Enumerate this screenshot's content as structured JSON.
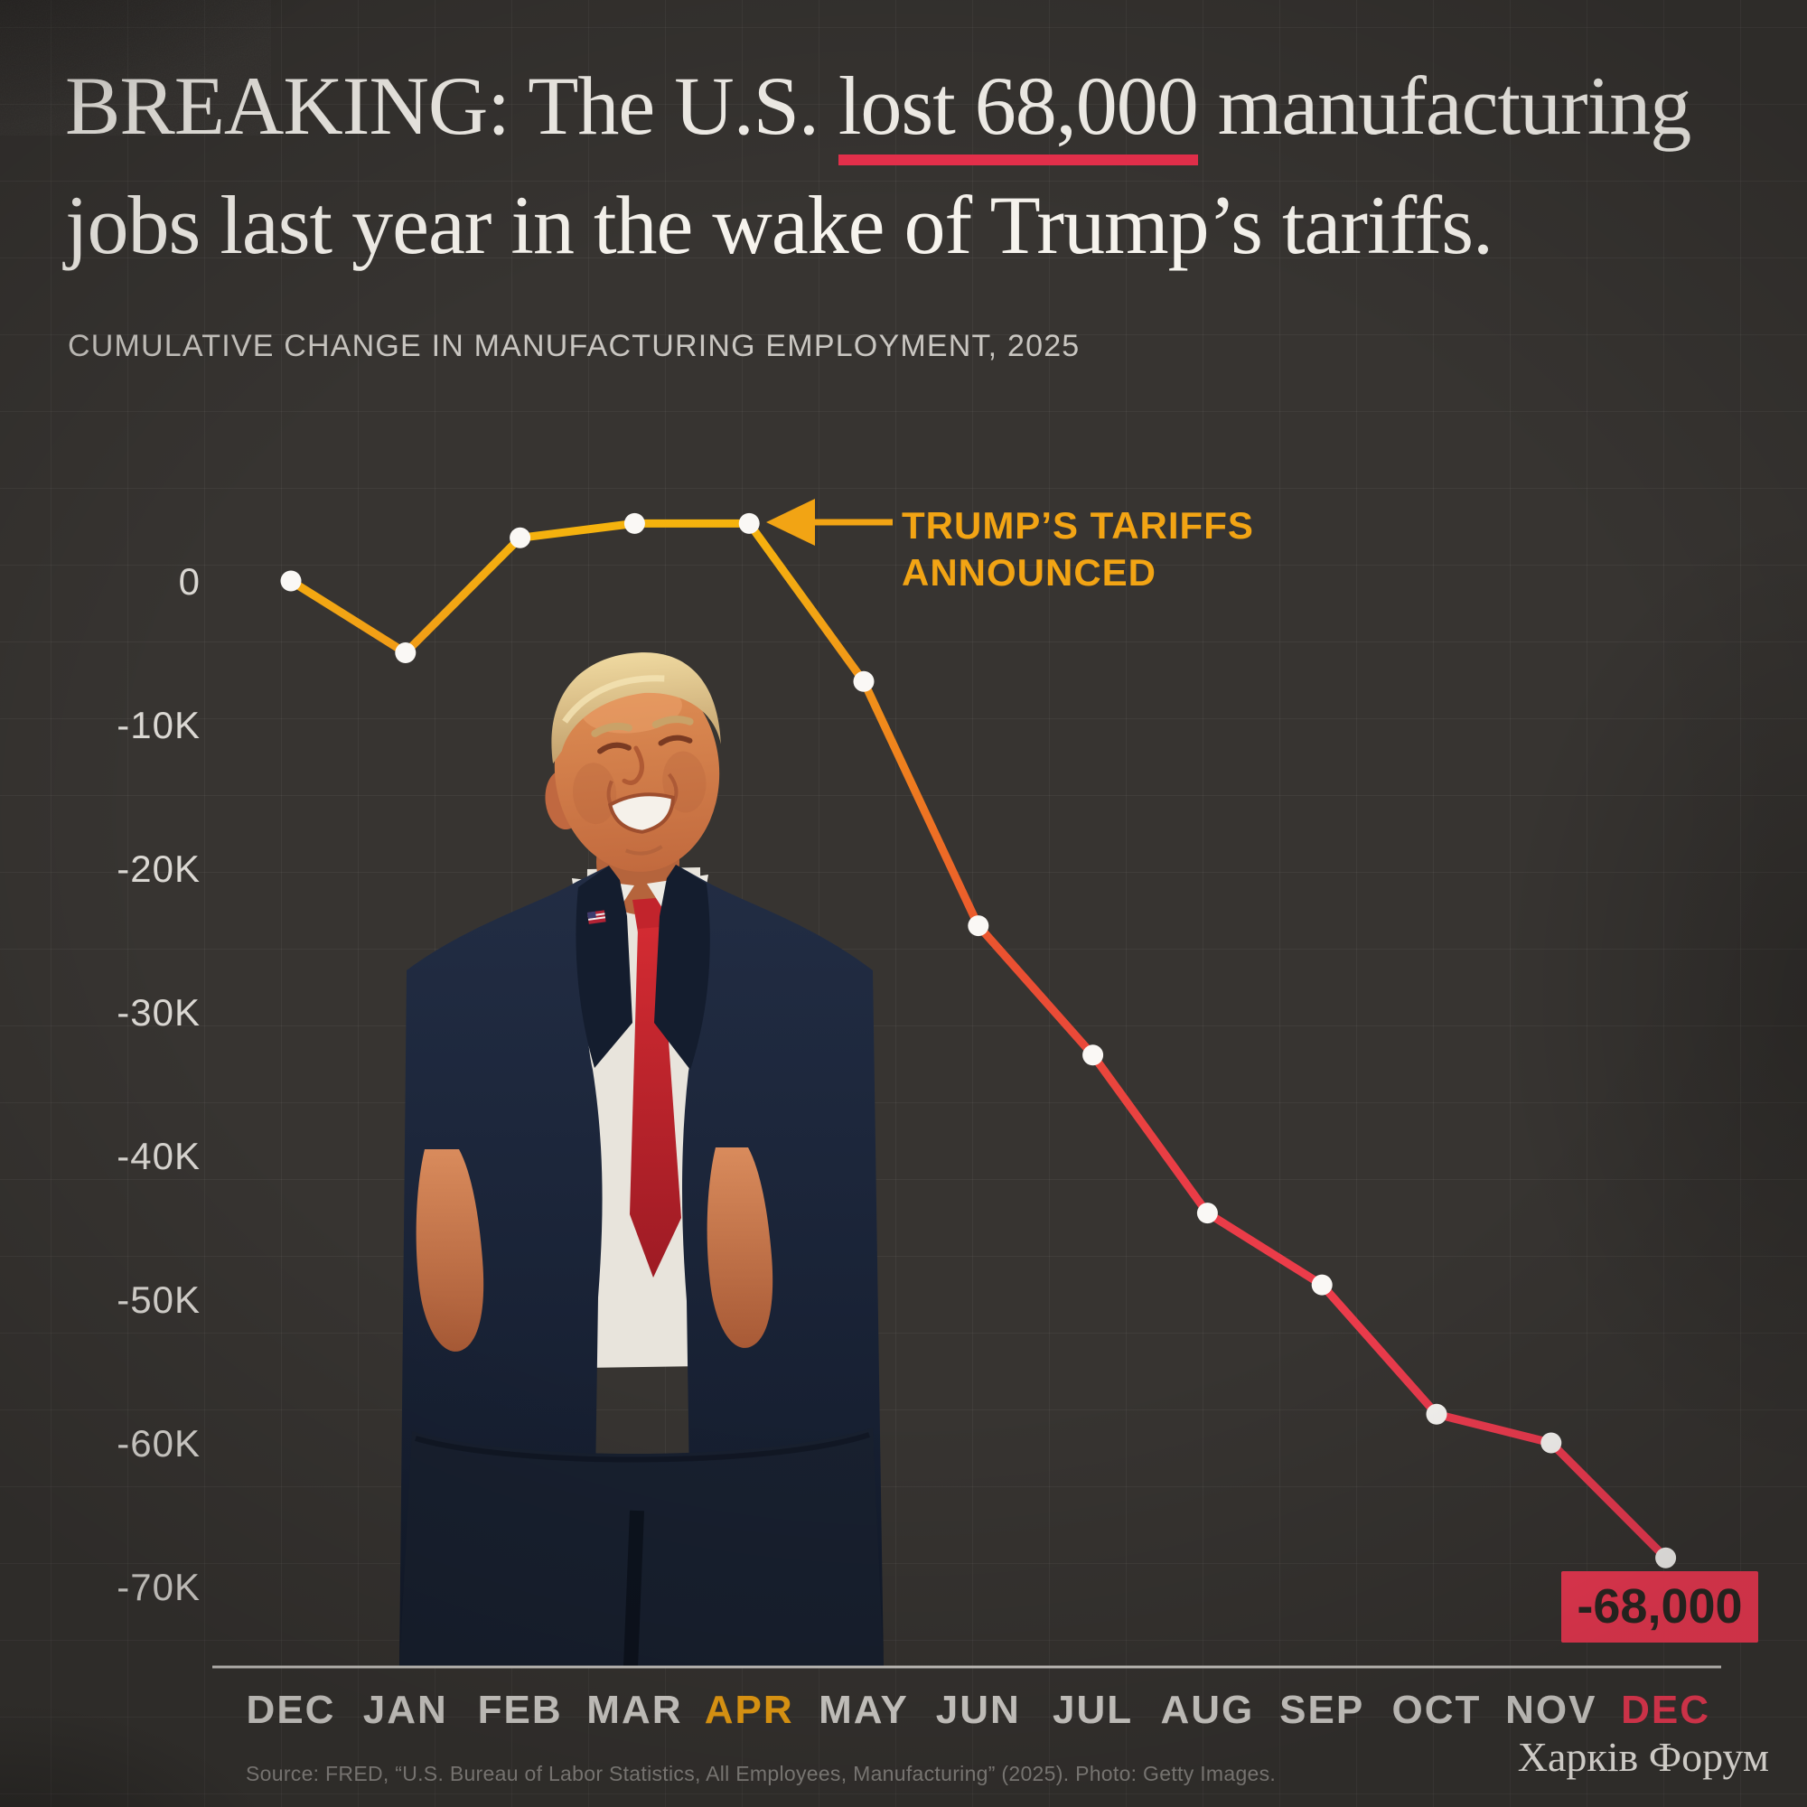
{
  "headline": {
    "prefix": "BREAKING: The U.S. ",
    "underlined": "lost 68,000",
    "suffix_line1": " manufacturing",
    "line2": "jobs last year in the wake of Trump’s tariffs."
  },
  "subtitle": "CUMULATIVE CHANGE IN MANUFACTURING EMPLOYMENT, 2025",
  "chart_data": {
    "type": "line",
    "title": "Cumulative change in manufacturing employment, 2025",
    "xlabel": "",
    "ylabel": "",
    "categories": [
      "DEC",
      "JAN",
      "FEB",
      "MAR",
      "APR",
      "MAY",
      "JUN",
      "JUL",
      "AUG",
      "SEP",
      "OCT",
      "NOV",
      "DEC"
    ],
    "values": [
      0,
      -5000,
      3000,
      4000,
      4000,
      -7000,
      -24000,
      -33000,
      -44000,
      -49000,
      -58000,
      -60000,
      -68000
    ],
    "y_ticks": [
      {
        "label": "0",
        "value": 0
      },
      {
        "label": "-10K",
        "value": -10000
      },
      {
        "label": "-20K",
        "value": -20000
      },
      {
        "label": "-30K",
        "value": -30000
      },
      {
        "label": "-40K",
        "value": -40000
      },
      {
        "label": "-50K",
        "value": -50000
      },
      {
        "label": "-60K",
        "value": -60000
      },
      {
        "label": "-70K",
        "value": -70000
      }
    ],
    "ylim": [
      -75000,
      10000
    ],
    "grid": true,
    "legend": "none",
    "annotation": {
      "line1": "TRUMP’S TARIFFS",
      "line2": "ANNOUNCED",
      "points_to": "APR",
      "points_to_index": 4
    },
    "end_label": "-68,000",
    "x_label_colors": {
      "4": "#F2A414",
      "12": "#F23B55"
    },
    "colors": {
      "line_gradient": [
        {
          "offset": "0%",
          "color": "#F6B60C"
        },
        {
          "offset": "10%",
          "color": "#F2A414"
        },
        {
          "offset": "25%",
          "color": "#EF7D1F"
        },
        {
          "offset": "42%",
          "color": "#EA5031"
        },
        {
          "offset": "62%",
          "color": "#E93C46"
        },
        {
          "offset": "100%",
          "color": "#F23B55"
        }
      ],
      "point": "#FAF8F5",
      "axis": "#CFCCC7",
      "tick_text": "#DBD8D3",
      "month_text": "#D8D5D0",
      "annotation": "#F2A414",
      "end_label_bg": "#F43B55",
      "end_label_text": "#2B2823",
      "headline_underline": "#E8304C",
      "background": "#373431"
    }
  },
  "photo": {
    "alt": "Smiling Donald Trump in a navy suit with a red tie (photo placeholder)"
  },
  "footer": {
    "source": "Source: FRED, “U.S. Bureau of Labor Statistics, All Employees, Manufacturing” (2025). Photo: Getty Images.",
    "watermark": "Харків Форум"
  }
}
